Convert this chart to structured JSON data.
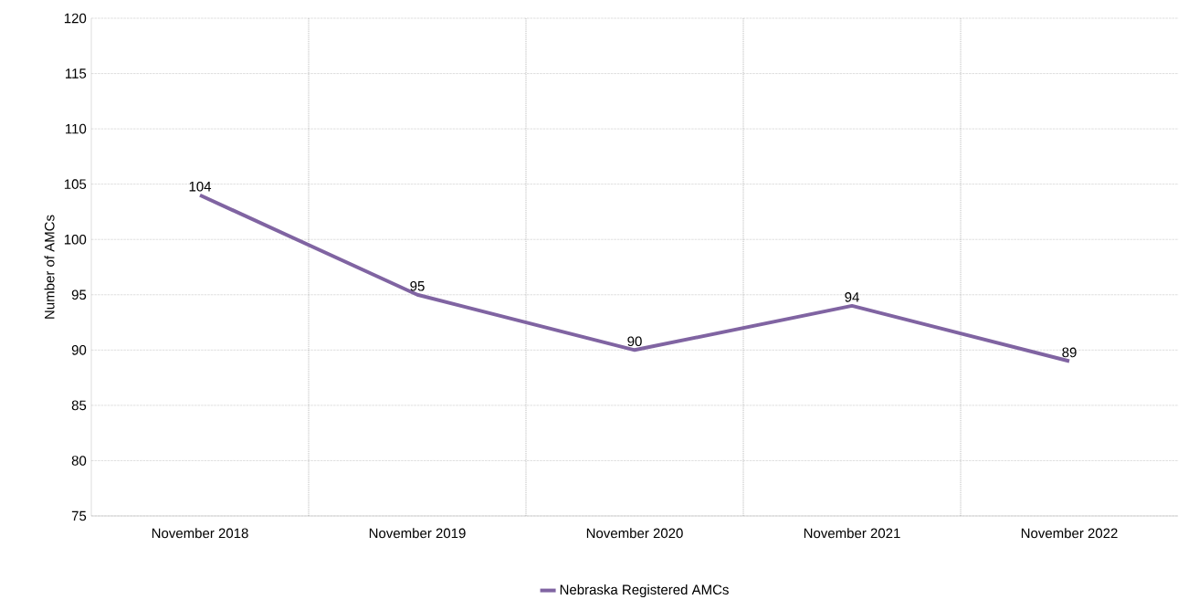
{
  "chart_data": {
    "type": "line",
    "ylabel": "Number of AMCs",
    "categories": [
      "November 2018",
      "November 2019",
      "November 2020",
      "November 2021",
      "November 2022"
    ],
    "series": [
      {
        "name": "Nebraska Registered AMCs",
        "color": "#8064a2",
        "values": [
          104,
          95,
          90,
          94,
          89
        ]
      }
    ],
    "ylim": [
      75,
      120
    ],
    "yticks": [
      75,
      80,
      85,
      90,
      95,
      100,
      105,
      110,
      115,
      120
    ],
    "grid": true,
    "legend": "bottom",
    "data_labels": true,
    "marker": "none",
    "line_style": "solid"
  }
}
